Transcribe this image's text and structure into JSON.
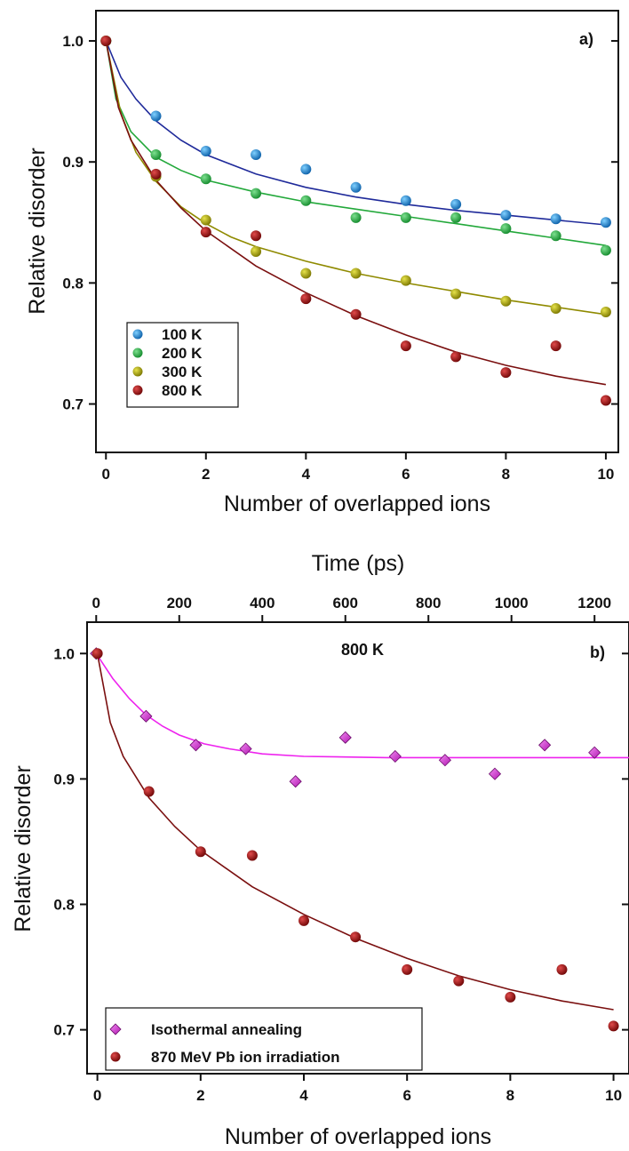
{
  "chart_data": [
    {
      "type": "scatter",
      "panel_label": "a)",
      "xlabel": "Number of overlapped ions",
      "ylabel": "Relative disorder",
      "xlim": [
        -0.2,
        10.25
      ],
      "ylim": [
        0.66,
        1.025
      ],
      "xticks": [
        0,
        2,
        4,
        6,
        8,
        10
      ],
      "xtick_labels": [
        "0",
        "2",
        "4",
        "6",
        "8",
        "10"
      ],
      "yticks": [
        0.7,
        0.8,
        0.9,
        1.0
      ],
      "ytick_labels": [
        "0.7",
        "0.8",
        "0.9",
        "1.0"
      ],
      "grid": false,
      "legend_position": "lower-left",
      "series": [
        {
          "name": "100 K",
          "color": "#1a8fe0",
          "fit_color": "#1f2a9a",
          "x": [
            0,
            1,
            2,
            3,
            4,
            5,
            6,
            7,
            8,
            9,
            10
          ],
          "y": [
            1.0,
            0.938,
            0.909,
            0.906,
            0.894,
            0.879,
            0.868,
            0.865,
            0.856,
            0.853,
            0.85
          ],
          "fit_x": [
            0,
            0.3,
            0.6,
            1,
            1.5,
            2,
            3,
            4,
            5,
            6,
            7,
            8,
            9,
            10
          ],
          "fit_y": [
            1.0,
            0.97,
            0.952,
            0.934,
            0.918,
            0.906,
            0.89,
            0.879,
            0.871,
            0.865,
            0.86,
            0.856,
            0.852,
            0.848
          ]
        },
        {
          "name": "200 K",
          "color": "#22b14c",
          "fit_color": "#22a83a",
          "x": [
            0,
            1,
            2,
            3,
            4,
            5,
            6,
            7,
            8,
            9,
            10
          ],
          "y": [
            1.0,
            0.906,
            0.886,
            0.874,
            0.868,
            0.854,
            0.854,
            0.854,
            0.845,
            0.839,
            0.827
          ],
          "fit_x": [
            0,
            0.2,
            0.5,
            1,
            1.5,
            2,
            3,
            4,
            5,
            6,
            7,
            8,
            9,
            10
          ],
          "fit_y": [
            1.0,
            0.952,
            0.925,
            0.904,
            0.893,
            0.885,
            0.875,
            0.867,
            0.861,
            0.855,
            0.849,
            0.843,
            0.837,
            0.831
          ]
        },
        {
          "name": "300 K",
          "color": "#b5b000",
          "fit_color": "#8f8a00",
          "x": [
            0,
            1,
            2,
            3,
            4,
            5,
            6,
            7,
            8,
            9,
            10
          ],
          "y": [
            1.0,
            0.888,
            0.852,
            0.826,
            0.808,
            0.808,
            0.802,
            0.791,
            0.785,
            0.779,
            0.776
          ],
          "fit_x": [
            0,
            0.3,
            0.6,
            1,
            1.5,
            2,
            2.5,
            3,
            4,
            5,
            6,
            7,
            8,
            9,
            10
          ],
          "fit_y": [
            1.0,
            0.94,
            0.908,
            0.884,
            0.863,
            0.849,
            0.838,
            0.83,
            0.818,
            0.808,
            0.8,
            0.793,
            0.786,
            0.78,
            0.774
          ]
        },
        {
          "name": "800 K",
          "color": "#b01818",
          "fit_color": "#7a0f0f",
          "x": [
            0,
            1,
            2,
            3,
            4,
            5,
            6,
            7,
            8,
            9,
            10
          ],
          "y": [
            1.0,
            0.89,
            0.842,
            0.839,
            0.787,
            0.774,
            0.748,
            0.739,
            0.726,
            0.748,
            0.703
          ],
          "fit_x": [
            0,
            0.25,
            0.5,
            1,
            1.5,
            2,
            3,
            4,
            5,
            6,
            7,
            8,
            9,
            10
          ],
          "fit_y": [
            1.0,
            0.945,
            0.918,
            0.885,
            0.862,
            0.843,
            0.814,
            0.792,
            0.773,
            0.757,
            0.743,
            0.732,
            0.723,
            0.716
          ]
        }
      ]
    },
    {
      "type": "scatter",
      "panel_label": "b)",
      "annotation": "800 K",
      "xlabel": "Number of overlapped ions",
      "x2label": "Time (ps)",
      "ylabel": "Relative disorder",
      "xlim": [
        -0.2,
        10.3
      ],
      "ylim": [
        0.665,
        1.025
      ],
      "x2lim": [
        -22,
        1283
      ],
      "xticks": [
        0,
        2,
        4,
        6,
        8,
        10
      ],
      "xtick_labels": [
        "0",
        "2",
        "4",
        "6",
        "8",
        "10"
      ],
      "x2ticks": [
        0,
        200,
        400,
        600,
        800,
        1000,
        1200
      ],
      "x2tick_labels": [
        "0",
        "200",
        "400",
        "600",
        "800",
        "1000",
        "1200"
      ],
      "yticks": [
        0.7,
        0.8,
        0.9,
        1.0
      ],
      "ytick_labels": [
        "0.7",
        "0.8",
        "0.9",
        "1.0"
      ],
      "grid": false,
      "legend_position": "bottom-left",
      "series": [
        {
          "name": "Isothermal annealing",
          "marker": "diamond",
          "axis": "time",
          "color": "#cc33cc",
          "fit_color": "#ee22ee",
          "x": [
            0,
            120,
            240,
            360,
            480,
            600,
            720,
            840,
            960,
            1080,
            1200
          ],
          "y": [
            1.0,
            0.95,
            0.927,
            0.924,
            0.898,
            0.933,
            0.918,
            0.915,
            0.904,
            0.927,
            0.921
          ],
          "fit_x": [
            0,
            40,
            80,
            120,
            160,
            200,
            260,
            320,
            400,
            500,
            700,
            900,
            1100,
            1283
          ],
          "fit_y": [
            1.0,
            0.98,
            0.964,
            0.951,
            0.942,
            0.935,
            0.928,
            0.924,
            0.92,
            0.918,
            0.917,
            0.917,
            0.917,
            0.917
          ]
        },
        {
          "name": "870 MeV Pb ion irradiation",
          "marker": "circle",
          "axis": "ions",
          "color": "#b01818",
          "fit_color": "#7a0f0f",
          "x": [
            0,
            1,
            2,
            3,
            4,
            5,
            6,
            7,
            8,
            9,
            10
          ],
          "y": [
            1.0,
            0.89,
            0.842,
            0.839,
            0.787,
            0.774,
            0.748,
            0.739,
            0.726,
            0.748,
            0.703
          ],
          "fit_x": [
            0,
            0.25,
            0.5,
            1,
            1.5,
            2,
            3,
            4,
            5,
            6,
            7,
            8,
            9,
            10
          ],
          "fit_y": [
            1.0,
            0.945,
            0.918,
            0.885,
            0.862,
            0.843,
            0.814,
            0.792,
            0.773,
            0.757,
            0.743,
            0.732,
            0.723,
            0.716
          ]
        }
      ]
    }
  ]
}
